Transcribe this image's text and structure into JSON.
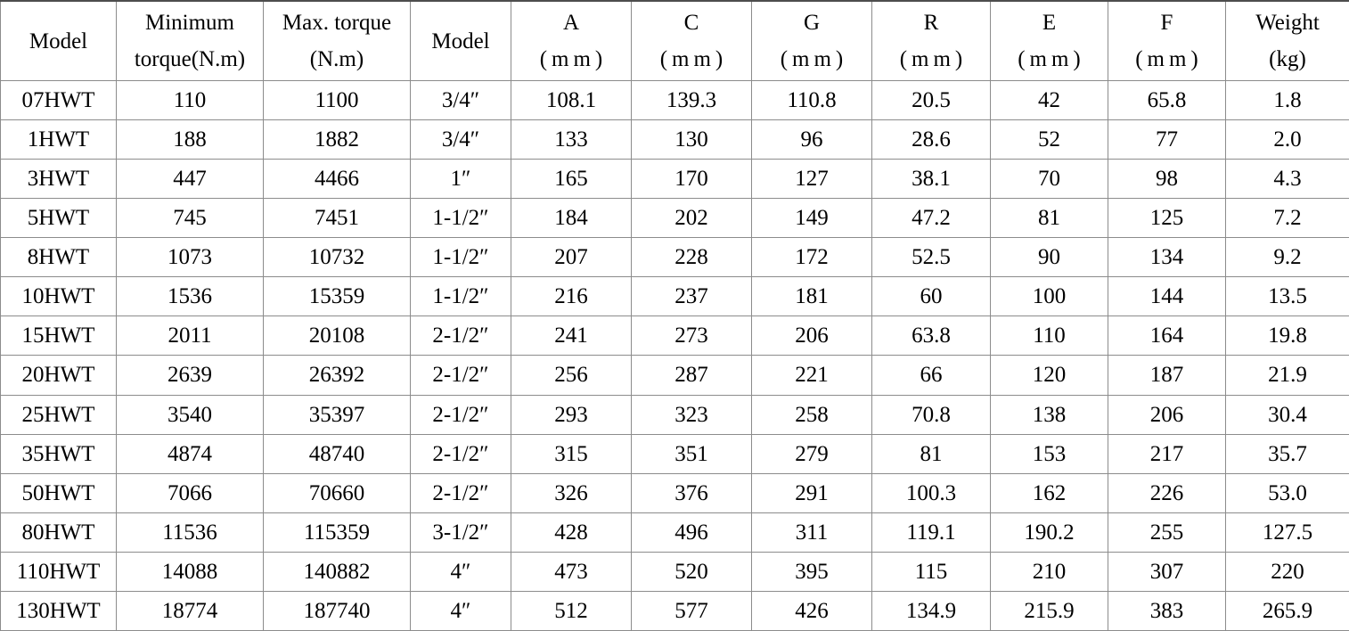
{
  "table": {
    "columns": [
      {
        "line1": "Model",
        "line2": ""
      },
      {
        "line1": "Minimum",
        "line2": "torque(N.m)"
      },
      {
        "line1": "Max. torque",
        "line2": "(N.m)"
      },
      {
        "line1": "Model",
        "line2": ""
      },
      {
        "line1": "A",
        "line2": "(mm)"
      },
      {
        "line1": "C",
        "line2": "(mm)"
      },
      {
        "line1": "G",
        "line2": "(mm)"
      },
      {
        "line1": "R",
        "line2": "(mm)"
      },
      {
        "line1": "E",
        "line2": "(mm)"
      },
      {
        "line1": "F",
        "line2": "(mm)"
      },
      {
        "line1": "Weight",
        "line2": "(kg)"
      }
    ],
    "rows": [
      [
        "07HWT",
        "110",
        "1100",
        "3/4″",
        "108.1",
        "139.3",
        "110.8",
        "20.5",
        "42",
        "65.8",
        "1.8"
      ],
      [
        "1HWT",
        "188",
        "1882",
        "3/4″",
        "133",
        "130",
        "96",
        "28.6",
        "52",
        "77",
        "2.0"
      ],
      [
        "3HWT",
        "447",
        "4466",
        "1″",
        "165",
        "170",
        "127",
        "38.1",
        "70",
        "98",
        "4.3"
      ],
      [
        "5HWT",
        "745",
        "7451",
        "1-1/2″",
        "184",
        "202",
        "149",
        "47.2",
        "81",
        "125",
        "7.2"
      ],
      [
        "8HWT",
        "1073",
        "10732",
        "1-1/2″",
        "207",
        "228",
        "172",
        "52.5",
        "90",
        "134",
        "9.2"
      ],
      [
        "10HWT",
        "1536",
        "15359",
        "1-1/2″",
        "216",
        "237",
        "181",
        "60",
        "100",
        "144",
        "13.5"
      ],
      [
        "15HWT",
        "2011",
        "20108",
        "2-1/2″",
        "241",
        "273",
        "206",
        "63.8",
        "110",
        "164",
        "19.8"
      ],
      [
        "20HWT",
        "2639",
        "26392",
        "2-1/2″",
        "256",
        "287",
        "221",
        "66",
        "120",
        "187",
        "21.9"
      ],
      [
        "25HWT",
        "3540",
        "35397",
        "2-1/2″",
        "293",
        "323",
        "258",
        "70.8",
        "138",
        "206",
        "30.4"
      ],
      [
        "35HWT",
        "4874",
        "48740",
        "2-1/2″",
        "315",
        "351",
        "279",
        "81",
        "153",
        "217",
        "35.7"
      ],
      [
        "50HWT",
        "7066",
        "70660",
        "2-1/2″",
        "326",
        "376",
        "291",
        "100.3",
        "162",
        "226",
        "53.0"
      ],
      [
        "80HWT",
        "11536",
        "115359",
        "3-1/2″",
        "428",
        "496",
        "311",
        "119.1",
        "190.2",
        "255",
        "127.5"
      ],
      [
        "110HWT",
        "14088",
        "140882",
        "4″",
        "473",
        "520",
        "395",
        "115",
        "210",
        "307",
        "220"
      ],
      [
        "130HWT",
        "18774",
        "187740",
        "4″",
        "512",
        "577",
        "426",
        "134.9",
        "215.9",
        "383",
        "265.9"
      ]
    ]
  },
  "colors": {
    "border": "#8c8c8c",
    "border_top": "#4d4d4d",
    "text": "#000000",
    "background": "#ffffff"
  }
}
